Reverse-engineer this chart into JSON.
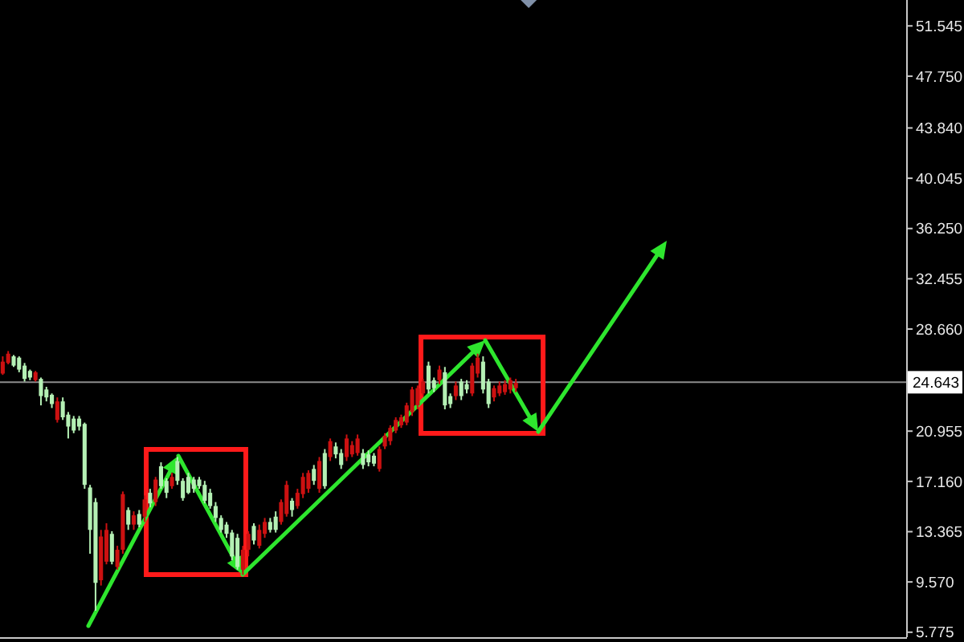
{
  "chart_data": {
    "type": "candlestick",
    "categories": [
      null,
      null,
      null,
      null,
      null,
      null,
      null,
      null,
      null,
      null,
      null,
      null,
      null,
      null,
      null,
      null,
      null,
      null,
      null,
      null,
      null,
      null,
      null,
      null,
      null,
      null,
      null,
      null,
      null,
      null,
      null,
      null,
      null,
      null,
      null,
      null,
      null,
      null,
      null,
      null,
      null,
      null,
      null,
      null,
      null,
      null,
      null,
      null,
      null,
      null,
      null,
      null,
      null,
      null,
      null,
      null,
      null,
      null,
      null,
      null,
      null,
      null,
      null,
      null,
      null,
      null,
      null,
      null,
      null,
      null,
      null,
      null,
      null,
      null,
      null,
      null,
      null,
      null,
      null,
      null,
      null,
      null,
      null,
      null,
      null,
      null,
      null,
      null,
      null,
      null,
      null,
      null,
      null,
      null,
      null,
      null,
      null,
      null,
      null,
      null,
      null,
      null,
      null,
      null,
      null,
      null,
      null,
      null,
      null,
      null,
      null,
      null,
      null,
      null,
      null,
      null,
      null,
      null,
      null,
      null,
      null,
      null,
      null,
      null,
      null,
      null,
      null,
      null,
      null,
      null,
      null,
      null,
      null,
      null,
      null,
      null,
      null,
      null,
      null,
      null,
      null,
      null,
      null,
      null,
      null,
      null,
      null,
      null,
      null,
      null,
      null,
      null,
      null,
      null,
      null,
      null,
      null,
      null,
      null,
      null,
      null,
      null,
      null,
      null,
      null,
      null
    ],
    "ohlc": [
      [
        25.3,
        26.6,
        25.2,
        26.2
      ],
      [
        26.1,
        27.0,
        26.0,
        26.8
      ],
      [
        26.6,
        26.7,
        25.8,
        25.9
      ],
      [
        26.5,
        26.6,
        25.4,
        25.6
      ],
      [
        25.9,
        26.1,
        24.7,
        24.9
      ],
      [
        25.5,
        25.6,
        24.8,
        25.0
      ],
      [
        24.8,
        25.5,
        24.7,
        25.4
      ],
      [
        24.9,
        25.0,
        22.9,
        23.6
      ],
      [
        24.1,
        24.3,
        23.2,
        23.5
      ],
      [
        23.7,
        23.8,
        22.7,
        23.0
      ],
      [
        21.8,
        23.5,
        21.6,
        23.2
      ],
      [
        23.2,
        23.5,
        21.8,
        22.0
      ],
      [
        22.2,
        22.4,
        20.4,
        21.3
      ],
      [
        21.9,
        22.1,
        20.8,
        21.0
      ],
      [
        21.9,
        22.1,
        21.0,
        21.3
      ],
      [
        21.5,
        21.6,
        16.6,
        16.9
      ],
      [
        16.7,
        16.9,
        11.7,
        13.5
      ],
      [
        15.6,
        15.9,
        7.4,
        9.5
      ],
      [
        9.7,
        13.5,
        9.3,
        13.0
      ],
      [
        11.1,
        14.0,
        10.9,
        13.5
      ],
      [
        13.2,
        13.4,
        10.9,
        11.1
      ],
      [
        10.7,
        12.3,
        10.5,
        12.0
      ],
      [
        12.0,
        16.4,
        11.7,
        16.2
      ],
      [
        15.0,
        15.2,
        13.5,
        13.9
      ],
      [
        13.9,
        14.9,
        13.5,
        14.6
      ],
      [
        14.7,
        15.0,
        13.7,
        13.9
      ],
      [
        14.5,
        16.1,
        14.1,
        15.8
      ],
      [
        16.3,
        16.6,
        15.2,
        15.5
      ],
      [
        15.6,
        17.5,
        15.3,
        17.3
      ],
      [
        18.3,
        18.6,
        16.6,
        16.8
      ],
      [
        17.2,
        17.4,
        15.9,
        16.3
      ],
      [
        16.8,
        17.8,
        16.6,
        17.5
      ],
      [
        18.7,
        19.0,
        16.9,
        17.2
      ],
      [
        17.2,
        17.4,
        15.7,
        15.9
      ],
      [
        17.5,
        17.8,
        16.2,
        16.3
      ],
      [
        17.3,
        17.5,
        16.3,
        16.6
      ],
      [
        17.3,
        17.5,
        16.6,
        16.8
      ],
      [
        16.9,
        17.2,
        15.5,
        15.7
      ],
      [
        16.3,
        16.6,
        15.1,
        15.3
      ],
      [
        15.3,
        15.6,
        14.1,
        14.4
      ],
      [
        14.4,
        14.6,
        13.3,
        13.5
      ],
      [
        13.9,
        14.1,
        12.9,
        13.2
      ],
      [
        13.3,
        13.5,
        11.2,
        11.5
      ],
      [
        12.9,
        13.2,
        10.5,
        10.7
      ],
      [
        10.5,
        12.3,
        10.1,
        12.0
      ],
      [
        12.0,
        13.4,
        11.5,
        13.2
      ],
      [
        13.8,
        14.0,
        12.4,
        12.7
      ],
      [
        12.3,
        13.9,
        12.1,
        13.5
      ],
      [
        13.2,
        14.4,
        12.9,
        14.1
      ],
      [
        14.1,
        14.4,
        13.3,
        13.5
      ],
      [
        14.5,
        14.9,
        13.3,
        13.5
      ],
      [
        14.1,
        15.8,
        13.9,
        15.6
      ],
      [
        14.7,
        17.2,
        14.5,
        16.9
      ],
      [
        15.7,
        15.9,
        14.5,
        15.0
      ],
      [
        15.3,
        16.6,
        15.1,
        16.3
      ],
      [
        16.2,
        17.8,
        15.9,
        17.5
      ],
      [
        16.6,
        18.0,
        16.3,
        17.8
      ],
      [
        18.1,
        18.4,
        16.9,
        17.2
      ],
      [
        16.6,
        19.0,
        16.3,
        18.7
      ],
      [
        19.3,
        19.6,
        16.6,
        16.8
      ],
      [
        19.0,
        20.4,
        18.7,
        20.2
      ],
      [
        19.8,
        20.1,
        18.9,
        19.2
      ],
      [
        19.3,
        19.6,
        18.1,
        18.4
      ],
      [
        19.0,
        20.7,
        18.7,
        20.4
      ],
      [
        19.2,
        20.2,
        19.0,
        19.9
      ],
      [
        19.3,
        20.7,
        19.1,
        20.4
      ],
      [
        19.3,
        19.6,
        18.1,
        18.4
      ],
      [
        19.2,
        19.5,
        18.3,
        18.6
      ],
      [
        19.1,
        19.3,
        18.3,
        18.5
      ],
      [
        18.1,
        19.8,
        17.9,
        19.6
      ],
      [
        19.8,
        20.8,
        19.6,
        20.6
      ],
      [
        20.2,
        21.4,
        19.9,
        21.2
      ],
      [
        21.0,
        22.0,
        20.8,
        21.8
      ],
      [
        21.4,
        22.2,
        21.2,
        22.0
      ],
      [
        21.6,
        23.1,
        21.4,
        22.9
      ],
      [
        22.4,
        24.3,
        22.1,
        24.1
      ],
      [
        22.9,
        24.4,
        22.6,
        24.2
      ],
      [
        23.8,
        24.9,
        23.6,
        24.7
      ],
      [
        25.9,
        26.2,
        23.8,
        24.1
      ],
      [
        24.8,
        25.0,
        23.9,
        24.2
      ],
      [
        24.8,
        25.9,
        24.5,
        25.6
      ],
      [
        25.4,
        25.8,
        22.6,
        22.9
      ],
      [
        23.6,
        23.8,
        22.7,
        23.0
      ],
      [
        23.6,
        24.7,
        23.3,
        24.4
      ],
      [
        24.7,
        24.9,
        23.3,
        23.6
      ],
      [
        24.5,
        24.8,
        23.8,
        24.1
      ],
      [
        23.8,
        26.1,
        23.6,
        25.9
      ],
      [
        25.3,
        26.8,
        25.0,
        26.5
      ],
      [
        26.2,
        26.6,
        23.8,
        24.1
      ],
      [
        24.7,
        24.9,
        22.7,
        23.0
      ],
      [
        23.5,
        24.4,
        23.2,
        24.2
      ],
      [
        23.8,
        24.7,
        23.6,
        24.4
      ],
      [
        23.9,
        24.8,
        23.7,
        24.5
      ],
      [
        24.1,
        25.0,
        23.8,
        24.8
      ],
      [
        24.2,
        24.9,
        23.9,
        24.6
      ],
      null,
      null,
      null,
      null,
      null,
      null,
      null,
      null,
      null,
      null,
      null,
      null,
      null,
      null,
      null,
      null,
      null,
      null,
      null,
      null,
      null,
      null,
      null,
      null,
      null,
      null,
      null,
      null,
      null,
      null,
      null,
      null,
      null,
      null,
      null,
      null,
      null,
      null,
      null,
      null,
      null,
      null,
      null,
      null,
      null,
      null,
      null,
      null,
      null,
      null,
      null,
      null,
      null,
      null,
      null,
      null,
      null,
      null,
      null,
      null,
      null,
      null,
      null,
      null,
      null,
      null,
      null,
      null,
      null,
      null,
      null
    ],
    "colors": [
      "#cc1111",
      "#cc1111",
      "#b4f0b4",
      "#b4f0b4",
      "#b4f0b4",
      "#b4f0b4",
      "#cc1111",
      "#b4f0b4",
      "#b4f0b4",
      "#b4f0b4",
      "#cc1111",
      "#b4f0b4",
      "#b4f0b4",
      "#b4f0b4",
      "#b4f0b4",
      "#b4f0b4",
      "#b4f0b4",
      "#b4f0b4",
      "#cc1111",
      "#cc1111",
      "#b4f0b4",
      "#cc1111",
      "#cc1111",
      "#b4f0b4",
      "#cc1111",
      "#b4f0b4",
      "#cc1111",
      "#b4f0b4",
      "#cc1111",
      "#b4f0b4",
      "#b4f0b4",
      "#cc1111",
      "#b4f0b4",
      "#b4f0b4",
      "#b4f0b4",
      "#b4f0b4",
      "#b4f0b4",
      "#b4f0b4",
      "#b4f0b4",
      "#b4f0b4",
      "#b4f0b4",
      "#b4f0b4",
      "#b4f0b4",
      "#b4f0b4",
      "#cc1111",
      "#cc1111",
      "#b4f0b4",
      "#cc1111",
      "#cc1111",
      "#b4f0b4",
      "#b4f0b4",
      "#cc1111",
      "#cc1111",
      "#b4f0b4",
      "#cc1111",
      "#cc1111",
      "#cc1111",
      "#b4f0b4",
      "#cc1111",
      "#b4f0b4",
      "#cc1111",
      "#b4f0b4",
      "#b4f0b4",
      "#cc1111",
      "#cc1111",
      "#cc1111",
      "#b4f0b4",
      "#b4f0b4",
      "#b4f0b4",
      "#cc1111",
      "#cc1111",
      "#cc1111",
      "#cc1111",
      "#cc1111",
      "#cc1111",
      "#cc1111",
      "#cc1111",
      "#cc1111",
      "#b4f0b4",
      "#b4f0b4",
      "#cc1111",
      "#b4f0b4",
      "#b4f0b4",
      "#cc1111",
      "#b4f0b4",
      "#b4f0b4",
      "#cc1111",
      "#cc1111",
      "#b4f0b4",
      "#b4f0b4",
      "#cc1111",
      "#cc1111",
      "#cc1111",
      "#cc1111",
      "#cc1111",
      null,
      null,
      null,
      null,
      null,
      null,
      null,
      null,
      null,
      null,
      null,
      null,
      null,
      null,
      null,
      null,
      null,
      null,
      null,
      null,
      null,
      null,
      null,
      null,
      null,
      null,
      null,
      null,
      null,
      null,
      null,
      null,
      null,
      null,
      null,
      null,
      null,
      null,
      null,
      null,
      null,
      null,
      null,
      null,
      null,
      null,
      null,
      null,
      null,
      null,
      null,
      null,
      null,
      null,
      null,
      null,
      null,
      null,
      null,
      null,
      null,
      null,
      null,
      null,
      null,
      null,
      null,
      null,
      null,
      null,
      null
    ],
    "ylim": [
      5.4,
      53.5
    ],
    "yticks": [
      5.775,
      {
        "value": 9.57,
        "label": "9.570"
      },
      13.365,
      {
        "value": 17.16,
        "label": "17.160"
      },
      20.955,
      {
        "value": 28.66,
        "label": "28.660"
      },
      32.455,
      {
        "value": 36.25,
        "label": "36.250"
      },
      40.045,
      {
        "value": 43.84,
        "label": "43.840"
      },
      {
        "value": 47.75,
        "label": "47.750"
      },
      51.545
    ],
    "tick_labels": "y",
    "ref_lines": [
      {
        "axis": "y",
        "value": 24.643,
        "label": "24.643",
        "color": "#8c8c8c"
      }
    ]
  }
}
